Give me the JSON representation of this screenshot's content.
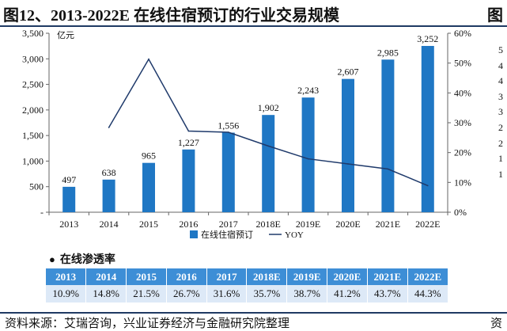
{
  "title": "图12、2013-2022E 在线住宿预订的行业交易规模",
  "title_next_fragment": "图",
  "source": "资料来源：艾瑞咨询，兴业证券经济与金融研究院整理",
  "source_next_fragment": "资",
  "right_cut_ticks": [
    "5",
    "4",
    "4",
    "3",
    "3",
    "2",
    "2",
    "1",
    "1"
  ],
  "colors": {
    "bar": "#1f77c4",
    "line": "#1f3a6b",
    "table_header": "#3d8ed6",
    "table_cell": "#dde9f7",
    "rule": "#1f3a63"
  },
  "chart_data": {
    "type": "bar",
    "categories": [
      "2013",
      "2014",
      "2015",
      "2016",
      "2017",
      "2018E",
      "2019E",
      "2020E",
      "2021E",
      "2022E"
    ],
    "y_unit_label": "亿元",
    "ylim": [
      0,
      3500
    ],
    "y_ticks": [
      "-",
      "500",
      "1,000",
      "1,500",
      "2,000",
      "2,500",
      "3,000",
      "3,500"
    ],
    "y2lim": [
      0,
      60
    ],
    "y2_ticks": [
      "0%",
      "10%",
      "20%",
      "30%",
      "40%",
      "50%",
      "60%"
    ],
    "series": [
      {
        "name": "在线住宿预订",
        "kind": "bar",
        "axis": "left",
        "values": [
          497,
          638,
          965,
          1227,
          1556,
          1902,
          2243,
          2607,
          2985,
          3252
        ],
        "labels": [
          "497",
          "638",
          "965",
          "1,227",
          "1,556",
          "1,902",
          "2,243",
          "2,607",
          "2,985",
          "3,252"
        ]
      },
      {
        "name": "YOY",
        "kind": "line",
        "axis": "right",
        "values": [
          null,
          28.4,
          51.3,
          27.2,
          26.8,
          22.2,
          17.9,
          16.2,
          14.5,
          8.9
        ]
      }
    ],
    "legend": [
      "在线住宿预订",
      "YOY"
    ],
    "legend_position": "bottom",
    "grid": false
  },
  "penetration": {
    "heading": "在线渗透率",
    "years": [
      "2013",
      "2014",
      "2015",
      "2016",
      "2017",
      "2018E",
      "2019E",
      "2020E",
      "2021E",
      "2022E"
    ],
    "rates": [
      "10.9%",
      "14.8%",
      "21.5%",
      "26.7%",
      "31.6%",
      "35.7%",
      "38.7%",
      "41.2%",
      "43.7%",
      "44.3%"
    ]
  }
}
